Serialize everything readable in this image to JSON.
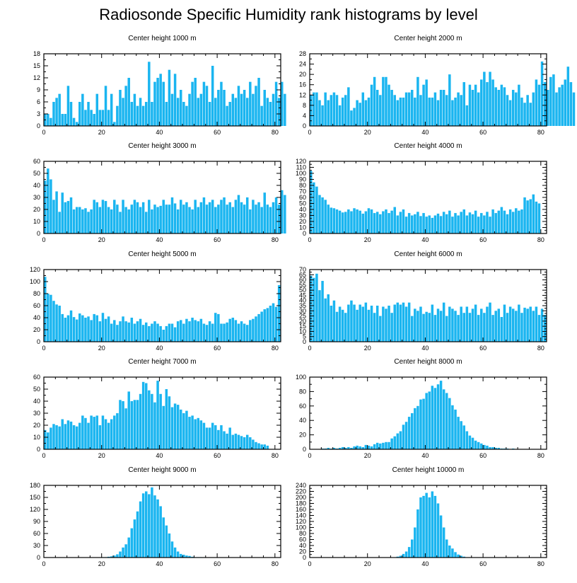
{
  "title": "Radiosonde Specific Humidity rank histograms by level",
  "colors": {
    "bar": "#1ab5f0",
    "frame": "#000000",
    "background": "#ffffff"
  },
  "chart_data": [
    {
      "type": "bar",
      "title": "Center height 1000 m",
      "xlim": [
        0,
        82
      ],
      "ylim": [
        0,
        18
      ],
      "xticks": [
        0,
        20,
        40,
        60,
        80
      ],
      "yticks": [
        0,
        3,
        6,
        9,
        12,
        15,
        18
      ],
      "values": [
        3,
        3,
        2,
        6,
        7,
        8,
        3,
        3,
        10,
        6,
        2,
        1,
        6,
        8,
        4,
        6,
        4,
        3,
        8,
        4,
        4,
        10,
        4,
        8,
        1,
        5,
        9,
        7,
        10,
        12,
        6,
        8,
        5,
        7,
        5,
        6,
        16,
        6,
        11,
        12,
        13,
        11,
        6,
        14,
        8,
        13,
        7,
        9,
        6,
        5,
        8,
        11,
        12,
        7,
        8,
        11,
        10,
        6,
        15,
        7,
        9,
        11,
        9,
        5,
        6,
        8,
        7,
        10,
        8,
        9,
        7,
        11,
        8,
        10,
        12,
        5,
        9,
        7,
        6,
        8,
        11,
        7,
        11,
        8
      ]
    },
    {
      "type": "bar",
      "title": "Center height 2000 m",
      "xlim": [
        0,
        82
      ],
      "ylim": [
        0,
        28
      ],
      "xticks": [
        0,
        20,
        40,
        60,
        80
      ],
      "yticks": [
        0,
        4,
        8,
        12,
        16,
        20,
        24,
        28
      ],
      "values": [
        12,
        13,
        13,
        10,
        8,
        13,
        10,
        12,
        13,
        12,
        8,
        11,
        12,
        15,
        6,
        7,
        10,
        9,
        13,
        10,
        11,
        16,
        19,
        14,
        12,
        19,
        19,
        16,
        14,
        12,
        10,
        11,
        11,
        13,
        13,
        14,
        11,
        19,
        12,
        16,
        18,
        11,
        11,
        13,
        10,
        14,
        14,
        12,
        20,
        10,
        11,
        13,
        12,
        17,
        8,
        16,
        14,
        16,
        13,
        18,
        21,
        17,
        21,
        18,
        15,
        14,
        16,
        15,
        12,
        10,
        14,
        13,
        16,
        11,
        9,
        12,
        9,
        13,
        18,
        16,
        25,
        17,
        14,
        19,
        20,
        13,
        15,
        16,
        18,
        23,
        17,
        13
      ]
    },
    {
      "type": "bar",
      "title": "Center height 3000 m",
      "xlim": [
        0,
        82
      ],
      "ylim": [
        0,
        60
      ],
      "xticks": [
        0,
        20,
        40,
        60,
        80
      ],
      "yticks": [
        0,
        10,
        20,
        30,
        40,
        50,
        60
      ],
      "values": [
        44,
        54,
        45,
        28,
        35,
        18,
        34,
        26,
        27,
        30,
        20,
        22,
        22,
        20,
        21,
        18,
        20,
        28,
        26,
        22,
        28,
        27,
        22,
        20,
        28,
        24,
        18,
        28,
        22,
        20,
        24,
        28,
        26,
        22,
        26,
        18,
        28,
        20,
        24,
        22,
        23,
        28,
        24,
        24,
        30,
        25,
        20,
        28,
        24,
        26,
        22,
        20,
        28,
        22,
        26,
        30,
        24,
        26,
        28,
        22,
        24,
        28,
        30,
        24,
        26,
        22,
        28,
        32,
        26,
        24,
        30,
        20,
        28,
        24,
        26,
        22,
        34,
        24,
        22,
        26,
        30,
        24,
        36,
        32
      ]
    },
    {
      "type": "bar",
      "title": "Center height 4000 m",
      "xlim": [
        0,
        82
      ],
      "ylim": [
        0,
        120
      ],
      "xticks": [
        0,
        20,
        40,
        60,
        80
      ],
      "yticks": [
        0,
        10,
        20,
        30,
        40,
        50,
        60,
        70,
        80,
        90,
        100,
        110,
        120
      ],
      "values": [
        104,
        85,
        78,
        64,
        60,
        56,
        48,
        43,
        42,
        40,
        38,
        35,
        36,
        40,
        37,
        42,
        40,
        38,
        33,
        37,
        42,
        40,
        34,
        36,
        32,
        37,
        40,
        34,
        38,
        44,
        30,
        36,
        40,
        28,
        34,
        30,
        32,
        36,
        29,
        34,
        28,
        30,
        26,
        30,
        33,
        29,
        36,
        32,
        38,
        28,
        34,
        30,
        36,
        40,
        30,
        35,
        32,
        38,
        28,
        34,
        30,
        36,
        28,
        40,
        34,
        38,
        44,
        38,
        32,
        40,
        36,
        42,
        38,
        40,
        60,
        55,
        57,
        65,
        53,
        50
      ]
    },
    {
      "type": "bar",
      "title": "Center height 5000 m",
      "xlim": [
        0,
        82
      ],
      "ylim": [
        0,
        120
      ],
      "xticks": [
        0,
        20,
        40,
        60,
        80
      ],
      "yticks": [
        0,
        20,
        40,
        60,
        80,
        100,
        120
      ],
      "values": [
        108,
        80,
        78,
        68,
        62,
        60,
        46,
        40,
        44,
        52,
        41,
        37,
        47,
        44,
        40,
        42,
        36,
        46,
        44,
        34,
        48,
        38,
        42,
        30,
        36,
        28,
        34,
        42,
        34,
        32,
        40,
        30,
        34,
        38,
        28,
        32,
        26,
        30,
        34,
        30,
        26,
        20,
        26,
        30,
        30,
        24,
        34,
        36,
        30,
        38,
        34,
        40,
        36,
        34,
        38,
        30,
        28,
        34,
        30,
        48,
        46,
        30,
        30,
        32,
        38,
        40,
        36,
        30,
        34,
        30,
        28,
        36,
        38,
        42,
        46,
        50,
        54,
        56,
        60,
        64,
        58,
        94
      ]
    },
    {
      "type": "bar",
      "title": "Center height 6000 m",
      "xlim": [
        0,
        82
      ],
      "ylim": [
        0,
        70
      ],
      "xticks": [
        0,
        20,
        40,
        60,
        80
      ],
      "yticks": [
        0,
        5,
        10,
        15,
        20,
        25,
        30,
        35,
        40,
        45,
        50,
        55,
        60,
        65,
        70
      ],
      "values": [
        64,
        62,
        66,
        50,
        59,
        42,
        46,
        35,
        40,
        29,
        34,
        31,
        28,
        36,
        40,
        36,
        31,
        36,
        34,
        38,
        31,
        35,
        28,
        35,
        25,
        34,
        32,
        35,
        28,
        36,
        38,
        36,
        38,
        34,
        38,
        25,
        32,
        30,
        34,
        27,
        29,
        28,
        36,
        26,
        32,
        30,
        38,
        25,
        34,
        32,
        30,
        26,
        34,
        28,
        34,
        28,
        32,
        36,
        26,
        32,
        28,
        34,
        38,
        26,
        30,
        32,
        24,
        36,
        28,
        34,
        32,
        30,
        36,
        28,
        33,
        32,
        34,
        30,
        34,
        26,
        32,
        26
      ]
    },
    {
      "type": "bar",
      "title": "Center height 7000 m",
      "xlim": [
        0,
        82
      ],
      "ylim": [
        0,
        60
      ],
      "xticks": [
        0,
        20,
        40,
        60,
        80
      ],
      "yticks": [
        0,
        10,
        20,
        30,
        40,
        50,
        60
      ],
      "values": [
        16,
        14,
        18,
        21,
        20,
        19,
        25,
        21,
        24,
        23,
        20,
        19,
        22,
        28,
        26,
        22,
        28,
        27,
        28,
        20,
        28,
        25,
        22,
        25,
        28,
        30,
        41,
        40,
        34,
        48,
        40,
        41,
        41,
        46,
        56,
        55,
        49,
        46,
        39,
        57,
        46,
        36,
        50,
        44,
        35,
        38,
        37,
        33,
        30,
        32,
        27,
        28,
        25,
        26,
        24,
        22,
        18,
        18,
        22,
        20,
        16,
        20,
        15,
        13,
        18,
        12,
        13,
        12,
        11,
        10,
        12,
        10,
        8,
        6,
        5,
        4,
        4,
        3
      ]
    },
    {
      "type": "bar",
      "title": "Center height 8000 m",
      "xlim": [
        0,
        82
      ],
      "ylim": [
        0,
        100
      ],
      "xticks": [
        0,
        20,
        40,
        60,
        80
      ],
      "yticks": [
        0,
        20,
        40,
        60,
        80,
        100
      ],
      "values": [
        0,
        0,
        0,
        0,
        1,
        1,
        2,
        1,
        2,
        1,
        2,
        3,
        2,
        3,
        2,
        4,
        5,
        4,
        3,
        6,
        5,
        4,
        7,
        9,
        8,
        9,
        10,
        10,
        15,
        18,
        22,
        25,
        34,
        38,
        45,
        50,
        57,
        60,
        69,
        70,
        78,
        80,
        88,
        85,
        90,
        95,
        83,
        78,
        71,
        61,
        55,
        45,
        39,
        33,
        25,
        19,
        16,
        12,
        10,
        8,
        6,
        5,
        3,
        3,
        2,
        2,
        1,
        1,
        1,
        0,
        1,
        0,
        0,
        0,
        0,
        0,
        0,
        0,
        0,
        0
      ]
    },
    {
      "type": "bar",
      "title": "Center height 9000 m",
      "xlim": [
        0,
        82
      ],
      "ylim": [
        0,
        180
      ],
      "xticks": [
        0,
        20,
        40,
        60,
        80
      ],
      "yticks": [
        0,
        30,
        60,
        90,
        120,
        150,
        180
      ],
      "values": [
        0,
        0,
        0,
        0,
        0,
        0,
        0,
        0,
        0,
        0,
        0,
        0,
        0,
        0,
        0,
        0,
        0,
        0,
        0,
        0,
        1,
        1,
        2,
        3,
        5,
        8,
        15,
        25,
        33,
        50,
        73,
        95,
        115,
        140,
        160,
        165,
        158,
        175,
        155,
        145,
        128,
        100,
        80,
        60,
        40,
        25,
        15,
        9,
        7,
        5,
        4,
        2,
        1,
        1,
        1,
        0,
        0,
        0,
        0,
        0,
        0,
        0,
        0,
        0,
        0,
        0,
        0,
        0,
        0,
        0,
        0,
        0,
        0,
        0,
        0,
        0,
        0,
        0,
        0,
        0,
        0,
        0,
        0,
        0
      ]
    },
    {
      "type": "bar",
      "title": "Center height 10000 m",
      "xlim": [
        0,
        82
      ],
      "ylim": [
        0,
        240
      ],
      "xticks": [
        0,
        20,
        40,
        60,
        80
      ],
      "yticks": [
        0,
        20,
        40,
        60,
        80,
        100,
        120,
        140,
        160,
        180,
        200,
        220,
        240
      ],
      "values": [
        0,
        0,
        0,
        0,
        0,
        0,
        0,
        0,
        0,
        0,
        0,
        0,
        0,
        0,
        0,
        0,
        0,
        0,
        0,
        0,
        0,
        0,
        0,
        0,
        0,
        0,
        0,
        0,
        0,
        0,
        3,
        6,
        12,
        20,
        35,
        60,
        100,
        160,
        200,
        205,
        215,
        200,
        220,
        205,
        180,
        140,
        100,
        60,
        40,
        30,
        18,
        10,
        6,
        3,
        1,
        1,
        0,
        0,
        0,
        0,
        0,
        0,
        0,
        0,
        0,
        0,
        0,
        0,
        0,
        0,
        0,
        0,
        0,
        0,
        0,
        0,
        0,
        0,
        0,
        0,
        0,
        0,
        0,
        0
      ]
    }
  ]
}
